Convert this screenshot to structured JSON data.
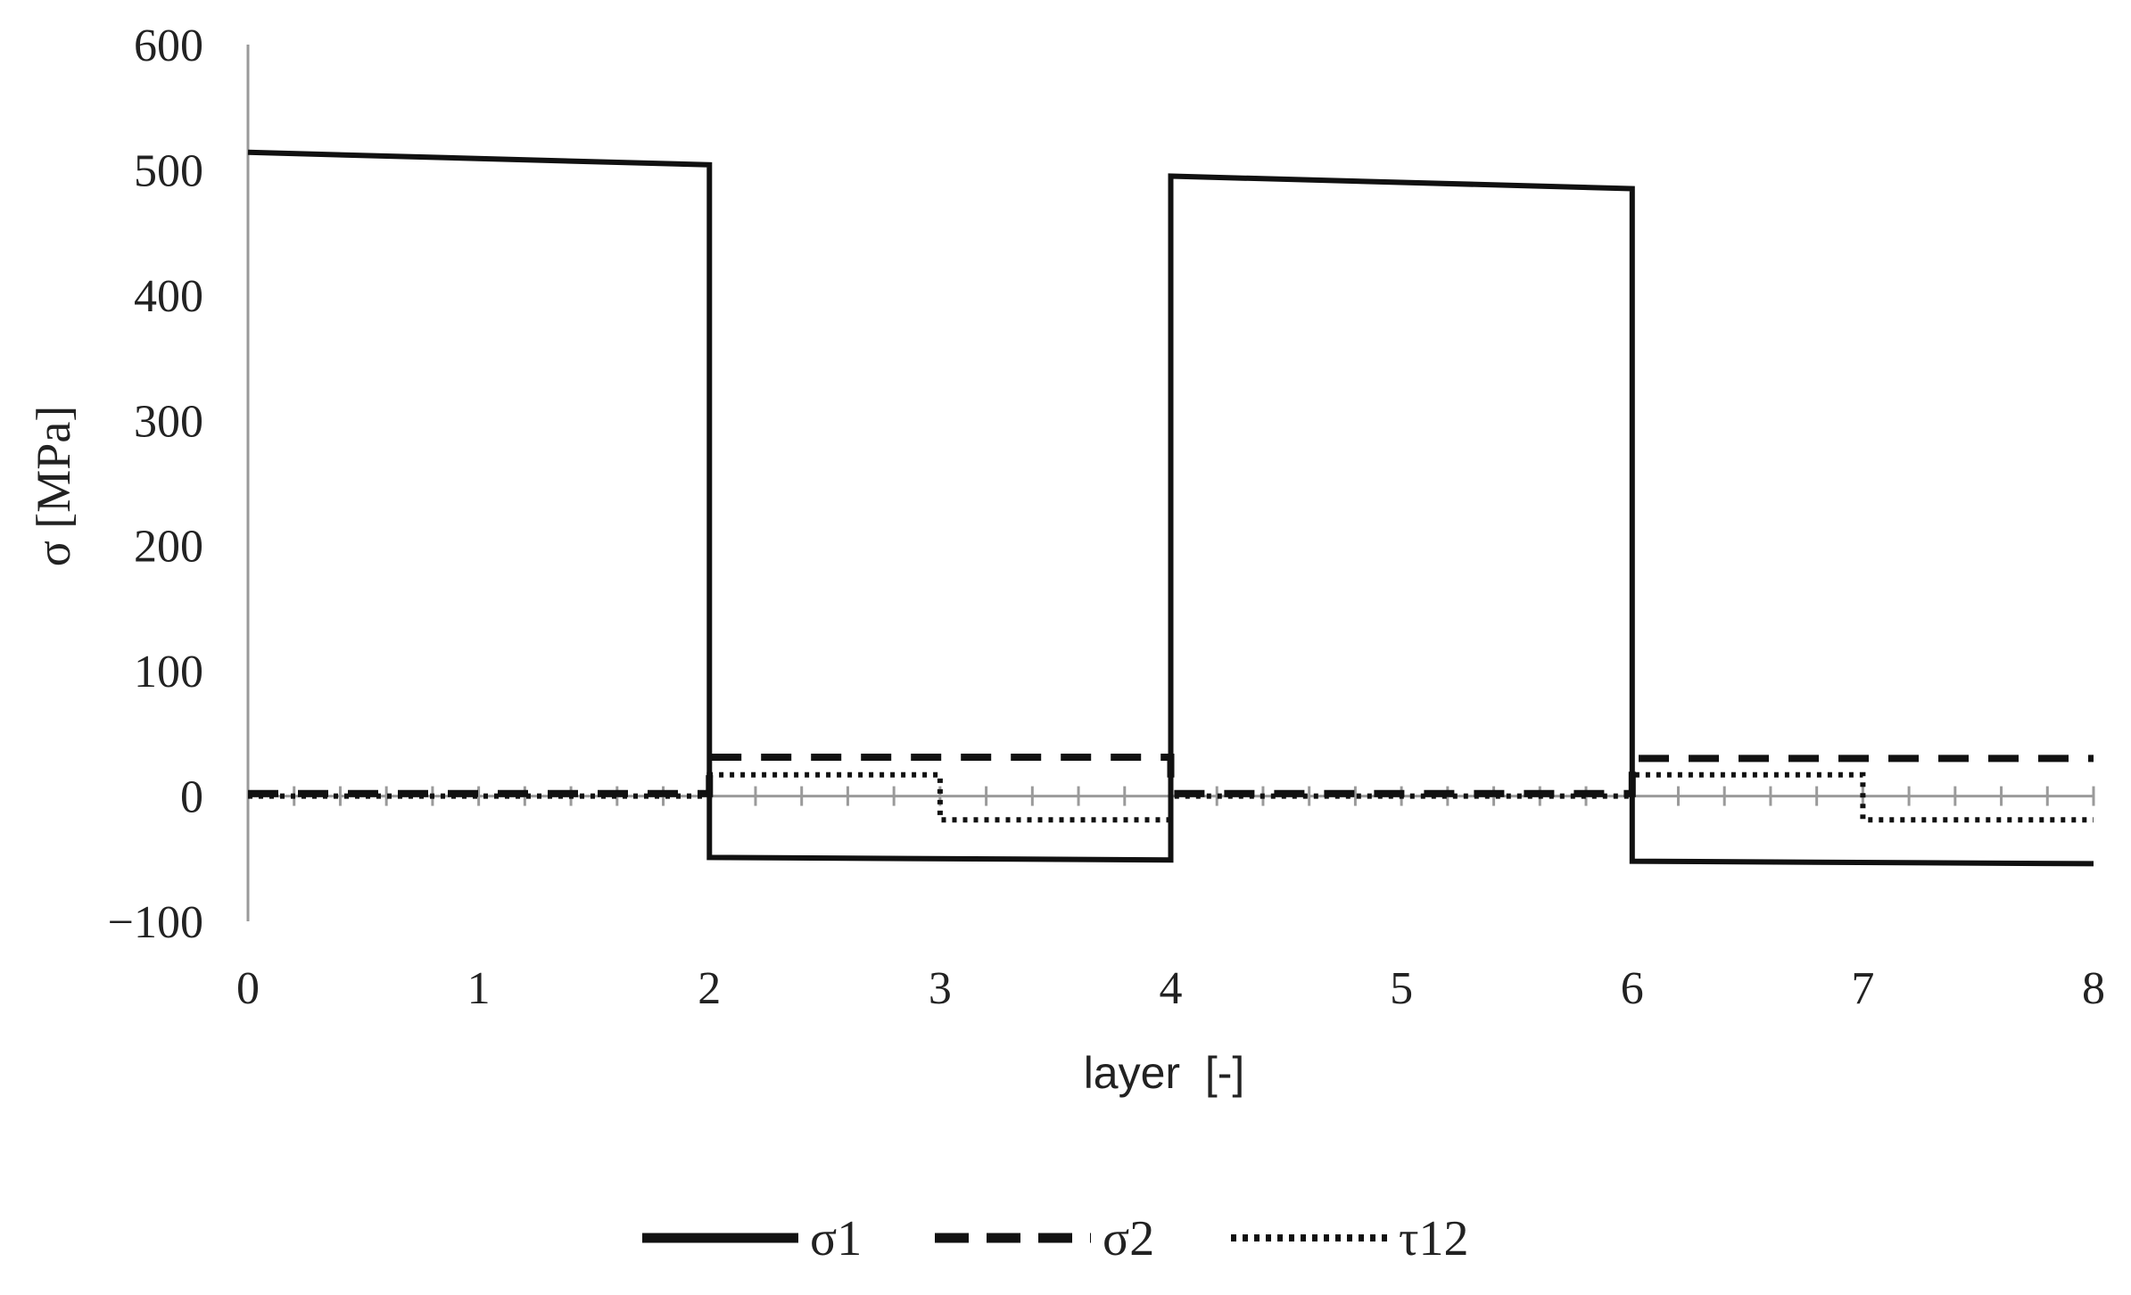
{
  "chart_data": {
    "type": "line",
    "xlabel": "layer  [-]",
    "ylabel": "σ [MPa]",
    "xlim": [
      0,
      8
    ],
    "ylim": [
      -100,
      600
    ],
    "xticks": [
      "0",
      "1",
      "2",
      "3",
      "4",
      "5",
      "6",
      "7",
      "8"
    ],
    "yticks": [
      "600",
      "500",
      "400",
      "300",
      "200",
      "100",
      "0",
      "−100"
    ],
    "grid": false,
    "legend_position": "bottom",
    "series": [
      {
        "name": "σ1",
        "style": "solid",
        "color": "#111111",
        "points": [
          [
            0,
            514
          ],
          [
            2,
            504
          ],
          [
            2,
            -49
          ],
          [
            4,
            -51
          ],
          [
            4,
            495
          ],
          [
            6,
            485
          ],
          [
            6,
            -52
          ],
          [
            8,
            -54
          ]
        ]
      },
      {
        "name": "σ2",
        "style": "dashed",
        "color": "#111111",
        "points": [
          [
            0,
            2
          ],
          [
            2,
            2
          ],
          [
            2,
            31
          ],
          [
            4,
            31
          ],
          [
            4,
            2
          ],
          [
            6,
            2
          ],
          [
            6,
            30
          ],
          [
            8,
            30
          ]
        ]
      },
      {
        "name": "τ12",
        "style": "dotted",
        "color": "#111111",
        "points": [
          [
            0,
            0
          ],
          [
            2,
            0
          ],
          [
            2,
            17
          ],
          [
            3,
            17
          ],
          [
            3,
            -19
          ],
          [
            4,
            -19
          ],
          [
            4,
            0
          ],
          [
            6,
            0
          ],
          [
            6,
            17
          ],
          [
            7,
            17
          ],
          [
            7,
            -19
          ],
          [
            8,
            -19
          ]
        ]
      }
    ]
  }
}
